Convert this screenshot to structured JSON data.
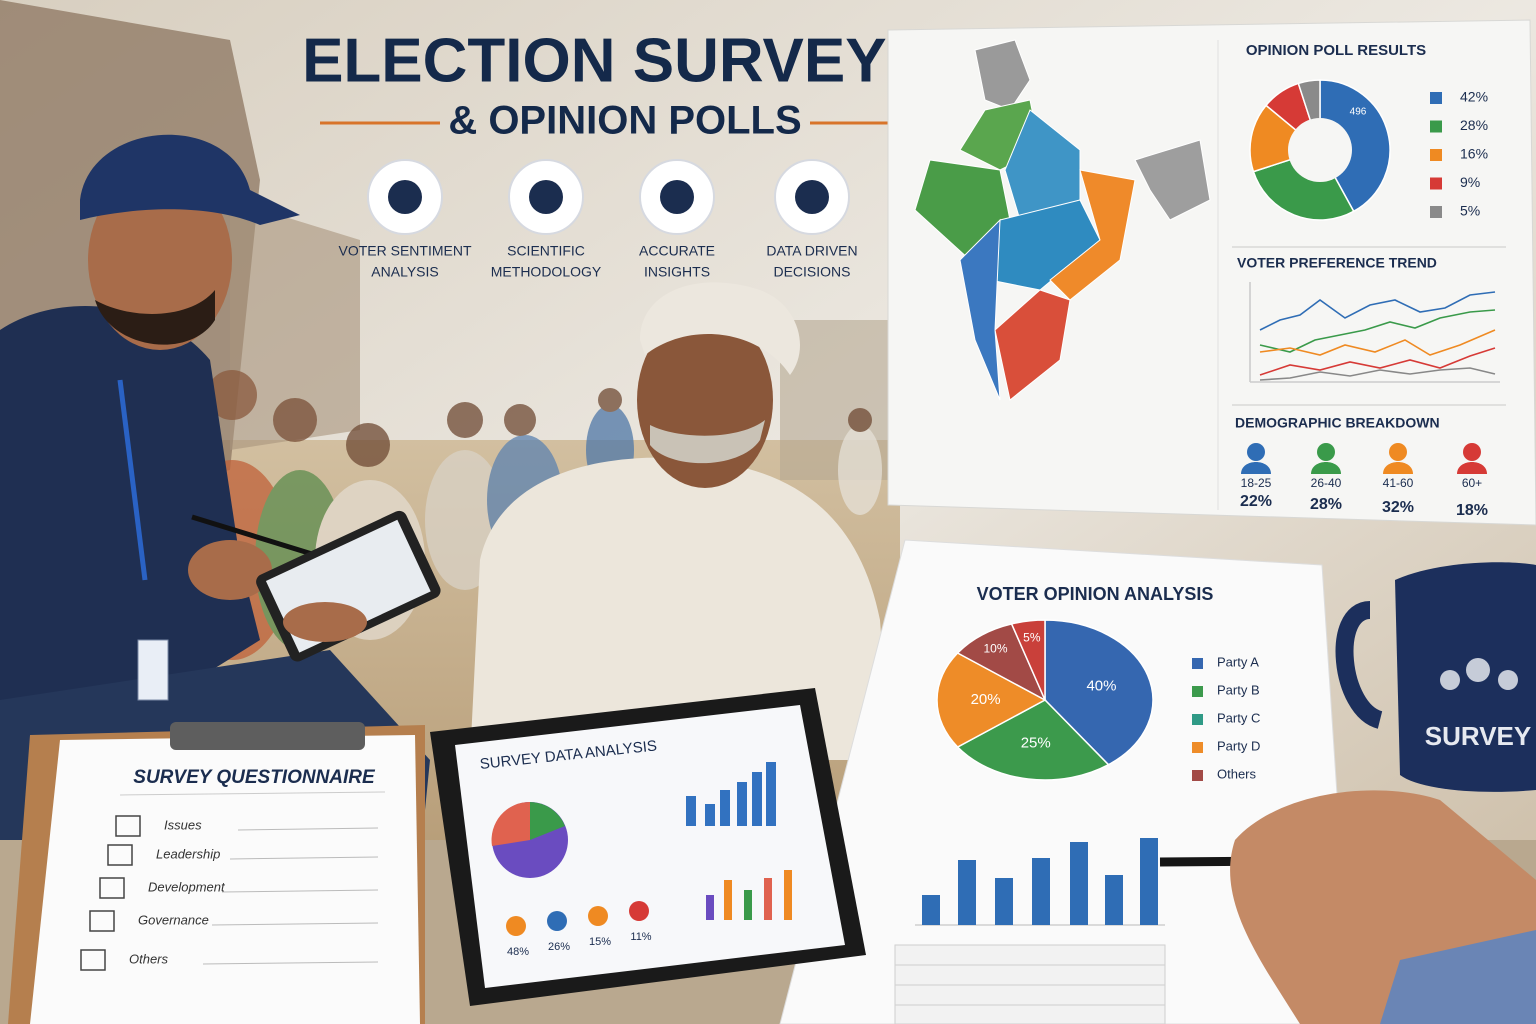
{
  "header": {
    "title": "ELECTION SURVEYS",
    "subtitle": "& OPINION POLLS"
  },
  "features": [
    {
      "lines": [
        "VOTER SENTIMENT",
        "ANALYSIS"
      ]
    },
    {
      "lines": [
        "SCIENTIFIC",
        "METHODOLOGY"
      ]
    },
    {
      "lines": [
        "ACCURATE",
        "INSIGHTS"
      ]
    },
    {
      "lines": [
        "DATA DRIVEN",
        "DECISIONS"
      ]
    }
  ],
  "opinion_poll": {
    "title": "OPINION POLL RESULTS",
    "center": "496",
    "values": [
      42,
      28,
      16,
      9,
      5
    ],
    "value_labels": [
      "42%",
      "28%",
      "16%",
      "9%",
      "5%"
    ],
    "colors": [
      "#2f6db5",
      "#3a9a4a",
      "#ef8a22",
      "#d63a36",
      "#8a8a8a"
    ]
  },
  "trend": {
    "title": "VOTER PREFERENCE TREND"
  },
  "demographics": {
    "title": "DEMOGRAPHIC BREAKDOWN",
    "groups": [
      {
        "age": "18-25",
        "share": "22%",
        "color": "#2f6db5"
      },
      {
        "age": "26-40",
        "share": "28%",
        "color": "#3a9a4a"
      },
      {
        "age": "41-60",
        "share": "32%",
        "color": "#ef8a22"
      },
      {
        "age": "60+",
        "share": "18%",
        "color": "#d63a36"
      }
    ]
  },
  "analysis": {
    "title": "VOTER OPINION ANALYSIS",
    "values": [
      40,
      25,
      20,
      10,
      5
    ],
    "value_labels": [
      "40%",
      "25%",
      "20%",
      "10%",
      "5%"
    ],
    "colors": [
      "#3567b0",
      "#3c9a4c",
      "#ee8c28",
      "#a24a46",
      "#c9403a"
    ],
    "legend": [
      {
        "name": "Party A",
        "color": "#3567b0"
      },
      {
        "name": "Party B",
        "color": "#3c9a4c"
      },
      {
        "name": "Party C",
        "color": "#2f9a86"
      },
      {
        "name": "Party D",
        "color": "#ee8c28"
      },
      {
        "name": "Others",
        "color": "#a24a46"
      }
    ]
  },
  "mug": {
    "text": "SURVEY"
  },
  "tablet": {
    "title": "SURVEY DATA ANALYSIS",
    "stats": [
      "48%",
      "26%",
      "15%",
      "11%"
    ]
  },
  "questionnaire": {
    "title": "SURVEY QUESTIONNAIRE",
    "items": [
      "Issues",
      "Leadership",
      "Development",
      "Governance",
      "Others"
    ]
  }
}
